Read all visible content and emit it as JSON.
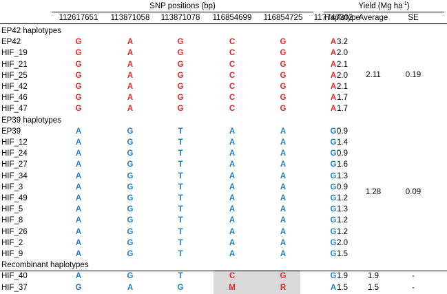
{
  "header": {
    "snp_title": "SNP positions (bp)",
    "yield_title": "Yield (Mg ha",
    "yield_sup": "-1",
    "yield_close": ")",
    "positions": [
      "112617651",
      "113871058",
      "113871078",
      "116854699",
      "116854725",
      "117747302"
    ],
    "haplotype_col": "Haplotype",
    "average_col": "Average",
    "se_col": "SE"
  },
  "colors": {
    "ep42": "#e8262a",
    "ep39": "#1e7fc2",
    "highlight": "#d9d9d9"
  },
  "groups": [
    {
      "label": "EP42 haplotypes",
      "average": "2.11",
      "se": "0.19",
      "rows": [
        {
          "name": "EP42",
          "snps": [
            "G",
            "A",
            "G",
            "C",
            "G",
            "A"
          ],
          "colors": [
            "ep42",
            "ep42",
            "ep42",
            "ep42",
            "ep42",
            "ep42"
          ],
          "yield": "3.2"
        },
        {
          "name": "HIF_19",
          "snps": [
            "G",
            "A",
            "G",
            "C",
            "G",
            "A"
          ],
          "colors": [
            "ep42",
            "ep42",
            "ep42",
            "ep42",
            "ep42",
            "ep42"
          ],
          "yield": "2.0"
        },
        {
          "name": "HIF_21",
          "snps": [
            "G",
            "A",
            "G",
            "C",
            "G",
            "A"
          ],
          "colors": [
            "ep42",
            "ep42",
            "ep42",
            "ep42",
            "ep42",
            "ep42"
          ],
          "yield": "2.1"
        },
        {
          "name": "HIF_25",
          "snps": [
            "G",
            "A",
            "G",
            "C",
            "G",
            "A"
          ],
          "colors": [
            "ep42",
            "ep42",
            "ep42",
            "ep42",
            "ep42",
            "ep42"
          ],
          "yield": "2.0"
        },
        {
          "name": "HIF_42",
          "snps": [
            "G",
            "A",
            "G",
            "C",
            "G",
            "A"
          ],
          "colors": [
            "ep42",
            "ep42",
            "ep42",
            "ep42",
            "ep42",
            "ep42"
          ],
          "yield": "2.1"
        },
        {
          "name": "HIF_46",
          "snps": [
            "G",
            "A",
            "G",
            "C",
            "G",
            "A"
          ],
          "colors": [
            "ep42",
            "ep42",
            "ep42",
            "ep42",
            "ep42",
            "ep42"
          ],
          "yield": "1.7"
        },
        {
          "name": "HIF_47",
          "snps": [
            "G",
            "A",
            "G",
            "C",
            "G",
            "A"
          ],
          "colors": [
            "ep42",
            "ep42",
            "ep42",
            "ep42",
            "ep42",
            "ep42"
          ],
          "yield": "1.7"
        }
      ]
    },
    {
      "label": "EP39 haplotypes",
      "average": "1.28",
      "se": "0.09",
      "rows": [
        {
          "name": "EP39",
          "snps": [
            "A",
            "G",
            "T",
            "A",
            "A",
            "G"
          ],
          "colors": [
            "ep39",
            "ep39",
            "ep39",
            "ep39",
            "ep39",
            "ep39"
          ],
          "yield": "0.9"
        },
        {
          "name": "HIF_12",
          "snps": [
            "A",
            "G",
            "T",
            "A",
            "A",
            "G"
          ],
          "colors": [
            "ep39",
            "ep39",
            "ep39",
            "ep39",
            "ep39",
            "ep39"
          ],
          "yield": "1.4"
        },
        {
          "name": "HIF_24",
          "snps": [
            "A",
            "G",
            "T",
            "A",
            "A",
            "G"
          ],
          "colors": [
            "ep39",
            "ep39",
            "ep39",
            "ep39",
            "ep39",
            "ep39"
          ],
          "yield": "0.9"
        },
        {
          "name": "HIF_27",
          "snps": [
            "A",
            "G",
            "T",
            "A",
            "A",
            "G"
          ],
          "colors": [
            "ep39",
            "ep39",
            "ep39",
            "ep39",
            "ep39",
            "ep39"
          ],
          "yield": "1.6"
        },
        {
          "name": "HIF_34",
          "snps": [
            "A",
            "G",
            "T",
            "A",
            "A",
            "G"
          ],
          "colors": [
            "ep39",
            "ep39",
            "ep39",
            "ep39",
            "ep39",
            "ep39"
          ],
          "yield": "1.3"
        },
        {
          "name": "HIF_3",
          "snps": [
            "A",
            "G",
            "T",
            "A",
            "A",
            "G"
          ],
          "colors": [
            "ep39",
            "ep39",
            "ep39",
            "ep39",
            "ep39",
            "ep39"
          ],
          "yield": "0.9"
        },
        {
          "name": "HIF_49",
          "snps": [
            "A",
            "G",
            "T",
            "A",
            "A",
            "G"
          ],
          "colors": [
            "ep39",
            "ep39",
            "ep39",
            "ep39",
            "ep39",
            "ep39"
          ],
          "yield": "1.2"
        },
        {
          "name": "HIF_5",
          "snps": [
            "A",
            "G",
            "T",
            "A",
            "A",
            "G"
          ],
          "colors": [
            "ep39",
            "ep39",
            "ep39",
            "ep39",
            "ep39",
            "ep39"
          ],
          "yield": "1.3"
        },
        {
          "name": "HIF_8",
          "snps": [
            "A",
            "G",
            "T",
            "A",
            "A",
            "G"
          ],
          "colors": [
            "ep39",
            "ep39",
            "ep39",
            "ep39",
            "ep39",
            "ep39"
          ],
          "yield": "1.2"
        },
        {
          "name": "HIF_26",
          "snps": [
            "A",
            "G",
            "T",
            "A",
            "A",
            "G"
          ],
          "colors": [
            "ep39",
            "ep39",
            "ep39",
            "ep39",
            "ep39",
            "ep39"
          ],
          "yield": "1.2"
        },
        {
          "name": "HIF_2",
          "snps": [
            "A",
            "G",
            "T",
            "A",
            "A",
            "G"
          ],
          "colors": [
            "ep39",
            "ep39",
            "ep39",
            "ep39",
            "ep39",
            "ep39"
          ],
          "yield": "2.0"
        },
        {
          "name": "HIF_9",
          "snps": [
            "A",
            "G",
            "T",
            "A",
            "A",
            "G"
          ],
          "colors": [
            "ep39",
            "ep39",
            "ep39",
            "ep39",
            "ep39",
            "ep39"
          ],
          "yield": "1.5"
        }
      ]
    },
    {
      "label": "Recombinant haplotypes",
      "average": "",
      "se": "",
      "rows": [
        {
          "name": "HIF_40",
          "snps": [
            "A",
            "G",
            "T",
            "C",
            "G",
            "G"
          ],
          "colors": [
            "ep39",
            "ep39",
            "ep39",
            "ep42",
            "ep42",
            "ep39"
          ],
          "highlight": [
            3,
            4
          ],
          "yield": "1.9",
          "average": "1.9",
          "se": "-"
        },
        {
          "name": "HIF_37",
          "snps": [
            "G",
            "A",
            "G",
            "M",
            "R",
            "A"
          ],
          "colors": [
            "ep39",
            "ep39",
            "ep39",
            "ep42",
            "ep42",
            "ep39"
          ],
          "highlight": [
            3,
            4
          ],
          "yield": "1.5",
          "average": "1.5",
          "se": "-"
        }
      ]
    }
  ]
}
